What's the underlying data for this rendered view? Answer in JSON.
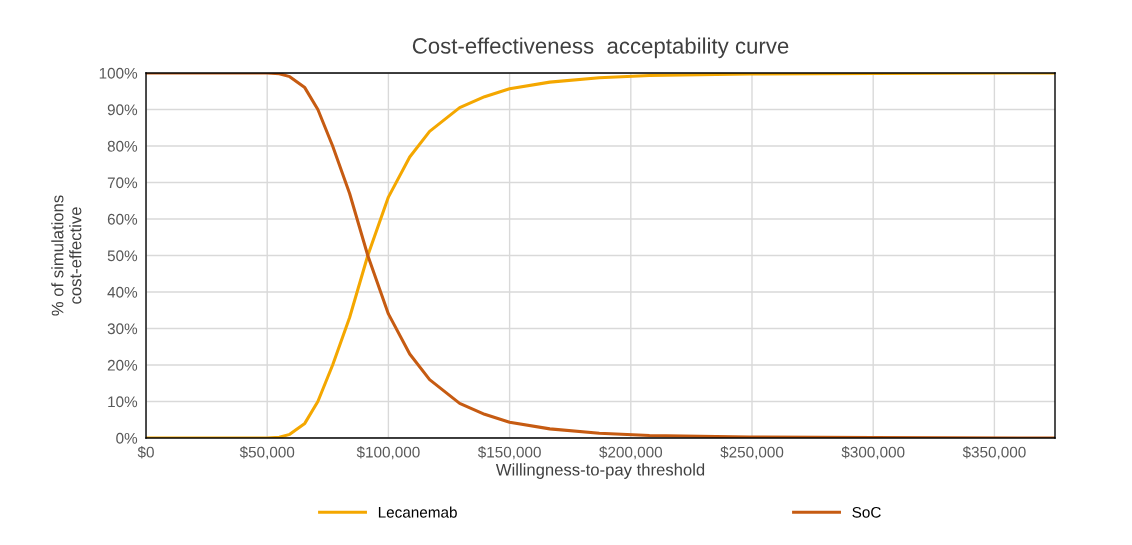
{
  "chart_data": {
    "type": "line",
    "title": "Cost-effectiveness  acceptability curve",
    "xlabel": "Willingness-to-pay threshold",
    "ylabel": "% of simulations\ncost-effective",
    "x": [
      0,
      50000,
      55000,
      59300,
      65500,
      70900,
      77000,
      84000,
      91500,
      100000,
      108800,
      117000,
      129400,
      139700,
      150000,
      166600,
      187000,
      207700,
      249000,
      300000,
      375000
    ],
    "series": [
      {
        "name": "Lecanemab",
        "color": "#f4a700",
        "values": [
          0,
          0,
          0.2,
          1,
          4,
          10,
          20,
          33,
          50,
          66,
          77,
          84,
          90.5,
          93.5,
          95.7,
          97.5,
          98.7,
          99.3,
          99.7,
          99.9,
          100
        ]
      },
      {
        "name": "SoC",
        "color": "#c65b12",
        "values": [
          100,
          100,
          99.8,
          99,
          96,
          90,
          80,
          67,
          50,
          34,
          23,
          16,
          9.5,
          6.5,
          4.3,
          2.5,
          1.3,
          0.7,
          0.3,
          0.1,
          0
        ]
      }
    ],
    "xlim": [
      0,
      375000
    ],
    "ylim": [
      0,
      100
    ],
    "xticks": [
      {
        "value": 0,
        "label": "$0"
      },
      {
        "value": 50000,
        "label": "$50,000"
      },
      {
        "value": 100000,
        "label": "$100,000"
      },
      {
        "value": 150000,
        "label": "$150,000"
      },
      {
        "value": 200000,
        "label": "$200,000"
      },
      {
        "value": 250000,
        "label": "$250,000"
      },
      {
        "value": 300000,
        "label": "$300,000"
      },
      {
        "value": 350000,
        "label": "$350,000"
      }
    ],
    "yticks": [
      {
        "value": 0,
        "label": "0%"
      },
      {
        "value": 10,
        "label": "10%"
      },
      {
        "value": 20,
        "label": "20%"
      },
      {
        "value": 30,
        "label": "30%"
      },
      {
        "value": 40,
        "label": "40%"
      },
      {
        "value": 50,
        "label": "50%"
      },
      {
        "value": 60,
        "label": "60%"
      },
      {
        "value": 70,
        "label": "70%"
      },
      {
        "value": 80,
        "label": "80%"
      },
      {
        "value": 90,
        "label": "90%"
      },
      {
        "value": 100,
        "label": "100%"
      }
    ],
    "grid": true,
    "legend": "bottom",
    "marker": "none",
    "line_style": "solid"
  }
}
